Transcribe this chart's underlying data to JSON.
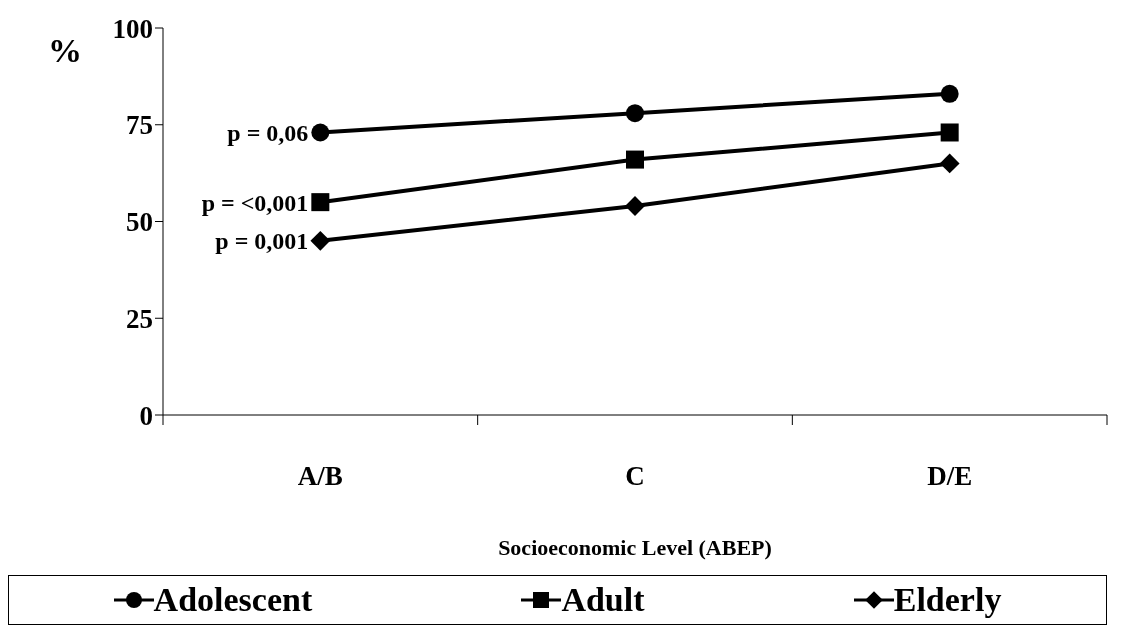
{
  "chart_data": {
    "type": "line",
    "ylabel": "%",
    "xlabel": "Socioeconomic Level (ABEP)",
    "categories": [
      "A/B",
      "C",
      "D/E"
    ],
    "series": [
      {
        "name": "Adolescent",
        "color": "#000000",
        "marker": "circle",
        "values": [
          73,
          78,
          83
        ]
      },
      {
        "name": "Adult",
        "color": "#000000",
        "marker": "square",
        "values": [
          55,
          66,
          73
        ]
      },
      {
        "name": "Elderly",
        "color": "#000000",
        "marker": "diamond",
        "values": [
          45,
          54,
          65
        ]
      }
    ],
    "annotations": [
      {
        "text": "p = 0,06",
        "x": "A/B",
        "y": 73
      },
      {
        "text": "p = <0,001",
        "x": "A/B",
        "y": 55
      },
      {
        "text": "p = 0,001",
        "x": "A/B",
        "y": 45
      }
    ],
    "ylim": [
      0,
      100
    ],
    "yticks": [
      0,
      25,
      50,
      75,
      100
    ],
    "grid": false,
    "legend": "bottom",
    "line_style": "solid"
  }
}
